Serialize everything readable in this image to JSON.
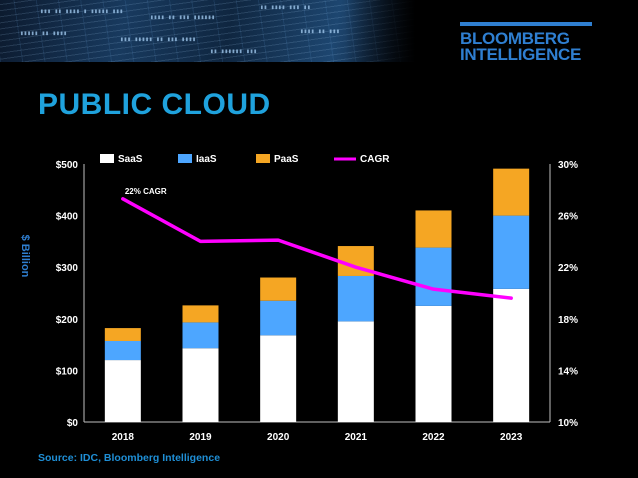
{
  "slide": {
    "title": "PUBLIC CLOUD",
    "source": "Source: IDC, Bloomberg Intelligence"
  },
  "logo": {
    "line1": "BLOOMBERG",
    "line2": "INTELLIGENCE",
    "color": "#2f7fd1"
  },
  "chart_data": {
    "type": "bar",
    "stacked": true,
    "categories": [
      "2018",
      "2019",
      "2020",
      "2021",
      "2022",
      "2023"
    ],
    "series": [
      {
        "name": "SaaS",
        "kind": "bar",
        "color": "#ffffff",
        "values": [
          120,
          143,
          168,
          195,
          225,
          258
        ]
      },
      {
        "name": "IaaS",
        "kind": "bar",
        "color": "#4da6ff",
        "values": [
          37,
          50,
          67,
          88,
          113,
          142
        ]
      },
      {
        "name": "PaaS",
        "kind": "bar",
        "color": "#f5a623",
        "values": [
          25,
          33,
          45,
          58,
          72,
          91
        ]
      },
      {
        "name": "CAGR",
        "kind": "line",
        "axis": "right",
        "color": "#ff00ff",
        "values": [
          27.3,
          24.0,
          24.1,
          22.0,
          20.3,
          19.6
        ]
      }
    ],
    "xlabel": "",
    "ylabel": "$ Billion",
    "ylim": [
      0,
      500
    ],
    "yticks": [
      "$0",
      "$100",
      "$200",
      "$300",
      "$400",
      "$500"
    ],
    "y2lim": [
      10,
      30
    ],
    "y2ticks": [
      "10%",
      "14%",
      "18%",
      "22%",
      "26%",
      "30%"
    ],
    "annotations": [
      {
        "text": "22% CAGR",
        "x": "2018"
      }
    ],
    "legend": "top",
    "grid": false,
    "colors": {
      "axis_text": "#ffffff",
      "background": "#000000"
    }
  }
}
